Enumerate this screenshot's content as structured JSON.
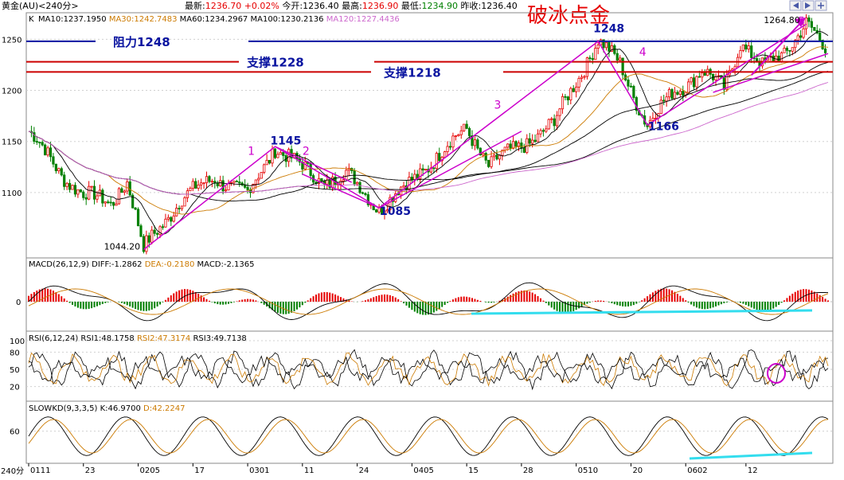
{
  "header": {
    "instrument": "黄金(AU)<240分>",
    "latest_label": "最新:",
    "latest": "1236.70",
    "change": "+0.02%",
    "open_label": "今开:",
    "open": "1236.40",
    "high_label": "最高:",
    "high": "1236.90",
    "low_label": "最低:",
    "low": "1234.90",
    "prev_close_label": "昨收:",
    "prev_close": "1236.40"
  },
  "ma_legend": [
    {
      "text": "MA10:1237.1950",
      "color": "#000000"
    },
    {
      "text": "MA30:1242.7483",
      "color": "#cc7a00"
    },
    {
      "text": "MA60:1234.2967",
      "color": "#000000"
    },
    {
      "text": "MA100:1230.2136",
      "color": "#000000"
    },
    {
      "text": "MA120:1227.4436",
      "color": "#cc66cc"
    }
  ],
  "main_prefix": "K",
  "macd_legend": [
    {
      "text": "MACD(26,12,9)",
      "color": "#000000"
    },
    {
      "text": "DIFF:-1.2862",
      "color": "#000000"
    },
    {
      "text": "DEA:-0.2180",
      "color": "#cc7a00"
    },
    {
      "text": "MACD:-2.1365",
      "color": "#000000"
    }
  ],
  "rsi_legend": [
    {
      "text": "RSI(6,12,24)",
      "color": "#000000"
    },
    {
      "text": "RSI1:48.1758",
      "color": "#000000"
    },
    {
      "text": "RSI2:47.3174",
      "color": "#cc7a00"
    },
    {
      "text": "RSI3:49.7138",
      "color": "#000000"
    }
  ],
  "kd_legend": [
    {
      "text": "SLOWKD(9,3,3,5)",
      "color": "#000000"
    },
    {
      "text": "K:46.9700",
      "color": "#000000"
    },
    {
      "text": "D:42.2247",
      "color": "#cc7a00"
    }
  ],
  "corner_label": "240分",
  "colors": {
    "up": "#e60000",
    "down": "#008000",
    "blue": "#0a14a0",
    "red": "#cc0000",
    "magenta": "#cc00cc",
    "cyan": "#33ddee",
    "ma_black": "#000000",
    "ma_orange": "#cc7a00",
    "ma_purple": "#cc66cc"
  },
  "chart_data": {
    "type": "candlestick",
    "title": "破冰点金",
    "y_ticks": [
      1100,
      1150,
      1200,
      1250
    ],
    "ylim": [
      1036,
      1276
    ],
    "x_ticks": [
      "0111",
      "23",
      "0205",
      "17",
      "0301",
      "11",
      "24",
      "0405",
      "15",
      "28",
      "0510",
      "20",
      "0602",
      "12"
    ],
    "x_tick_index": [
      0,
      20,
      40,
      60,
      80,
      100,
      120,
      140,
      160,
      180,
      200,
      220,
      240,
      262
    ],
    "bars_count": 292,
    "path_points": [
      {
        "index": 0,
        "price": 1160
      },
      {
        "index": 12,
        "price": 1118
      },
      {
        "index": 20,
        "price": 1098
      },
      {
        "index": 30,
        "price": 1090
      },
      {
        "index": 36,
        "price": 1112
      },
      {
        "index": 42,
        "price": 1044.2
      },
      {
        "index": 55,
        "price": 1092
      },
      {
        "index": 68,
        "price": 1115
      },
      {
        "index": 80,
        "price": 1098
      },
      {
        "index": 90,
        "price": 1145
      },
      {
        "index": 98,
        "price": 1128
      },
      {
        "index": 108,
        "price": 1110
      },
      {
        "index": 116,
        "price": 1118
      },
      {
        "index": 128,
        "price": 1085
      },
      {
        "index": 138,
        "price": 1106
      },
      {
        "index": 150,
        "price": 1138
      },
      {
        "index": 160,
        "price": 1162
      },
      {
        "index": 168,
        "price": 1128
      },
      {
        "index": 178,
        "price": 1142
      },
      {
        "index": 192,
        "price": 1168
      },
      {
        "index": 200,
        "price": 1210
      },
      {
        "index": 208,
        "price": 1248
      },
      {
        "index": 216,
        "price": 1226
      },
      {
        "index": 226,
        "price": 1166
      },
      {
        "index": 236,
        "price": 1200
      },
      {
        "index": 246,
        "price": 1218
      },
      {
        "index": 254,
        "price": 1202
      },
      {
        "index": 260,
        "price": 1248
      },
      {
        "index": 268,
        "price": 1222
      },
      {
        "index": 276,
        "price": 1238
      },
      {
        "index": 284,
        "price": 1264.8
      },
      {
        "index": 292,
        "price": 1236.7
      }
    ],
    "levels": [
      {
        "label": "阻力1248",
        "price": 1248,
        "color": "#0a14a0"
      },
      {
        "label": "支撑1228",
        "price": 1228,
        "color": "#cc0000"
      },
      {
        "label": "支撑1218",
        "price": 1218,
        "color": "#cc0000"
      }
    ],
    "wave_labels": [
      {
        "text": "1",
        "index": 80,
        "price": 1137
      },
      {
        "text": "2",
        "index": 100,
        "price": 1137
      },
      {
        "text": "3",
        "index": 170,
        "price": 1182
      },
      {
        "text": "4",
        "index": 223,
        "price": 1234
      },
      {
        "text": "5",
        "index": 281,
        "price": 1264
      }
    ],
    "price_labels": [
      {
        "text": "1145",
        "index": 90,
        "price": 1147
      },
      {
        "text": "1085",
        "index": 130,
        "price": 1078
      },
      {
        "text": "1248",
        "index": 208,
        "price": 1257
      },
      {
        "text": "1166",
        "index": 228,
        "price": 1161
      },
      {
        "text": "1044.20",
        "index": 31,
        "price": 1044
      },
      {
        "text": "1264.80",
        "index": 272,
        "price": 1266
      }
    ],
    "rsi_ticks": [
      20,
      50,
      80,
      100
    ],
    "kd_ticks": [
      60
    ],
    "macd_ticks": [
      0
    ]
  }
}
